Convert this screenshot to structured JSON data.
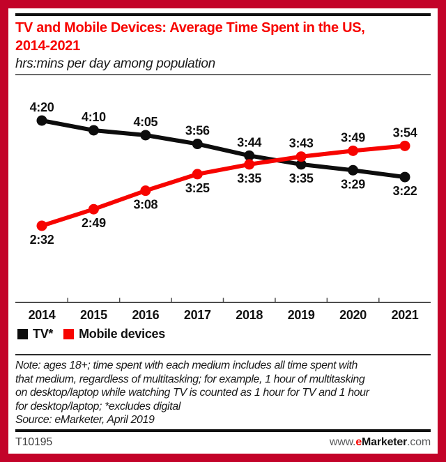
{
  "colors": {
    "border_red": "#c30329",
    "bright_red": "#f70400",
    "series_black": "#0d0d0d",
    "axis_gray": "#4d4d4d"
  },
  "header": {
    "title_line1": "TV and Mobile Devices: Average Time Spent in the US,",
    "title_line2": "2014-2021",
    "subtitle": "hrs:mins per day among population"
  },
  "chart_data": {
    "type": "line",
    "title": "TV and Mobile Devices: Average Time Spent in the US, 2014-2021",
    "subtitle": "hrs:mins per day among population",
    "unit": "hrs:mins per day among population",
    "categories": [
      "2014",
      "2015",
      "2016",
      "2017",
      "2018",
      "2019",
      "2020",
      "2021"
    ],
    "series": [
      {
        "name": "TV*",
        "color": "#0d0d0d",
        "labels": [
          "4:20",
          "4:10",
          "4:05",
          "3:56",
          "3:44",
          "3:35",
          "3:29",
          "3:22"
        ],
        "values_minutes": [
          260,
          250,
          245,
          236,
          224,
          215,
          209,
          202
        ],
        "label_side": [
          "above",
          "above",
          "above",
          "above",
          "above",
          "below",
          "below",
          "below"
        ]
      },
      {
        "name": "Mobile devices",
        "color": "#f70400",
        "labels": [
          "2:32",
          "2:49",
          "3:08",
          "3:25",
          "3:35",
          "3:43",
          "3:49",
          "3:54"
        ],
        "values_minutes": [
          152,
          169,
          188,
          205,
          215,
          223,
          229,
          234
        ],
        "label_side": [
          "below",
          "below",
          "below",
          "below",
          "below",
          "above",
          "above",
          "above"
        ]
      }
    ],
    "value_range_minutes": [
      152,
      260
    ],
    "xlabel": "",
    "ylabel": "",
    "grid": false,
    "legend_position": "bottom-left",
    "y_axis_shown": false
  },
  "note": {
    "lines": [
      "Note: ages 18+; time spent with each medium includes all time spent with",
      "that medium, regardless of multitasking; for example, 1 hour of multitasking",
      "on desktop/laptop while watching TV is counted as 1 hour for TV and 1 hour",
      "for desktop/laptop; *excludes digital"
    ],
    "source": "Source: eMarketer, April 2019"
  },
  "footer": {
    "id_code": "T10195",
    "site": {
      "www": "www.",
      "e": "e",
      "marketer": "Marketer",
      "com": ".com"
    }
  }
}
